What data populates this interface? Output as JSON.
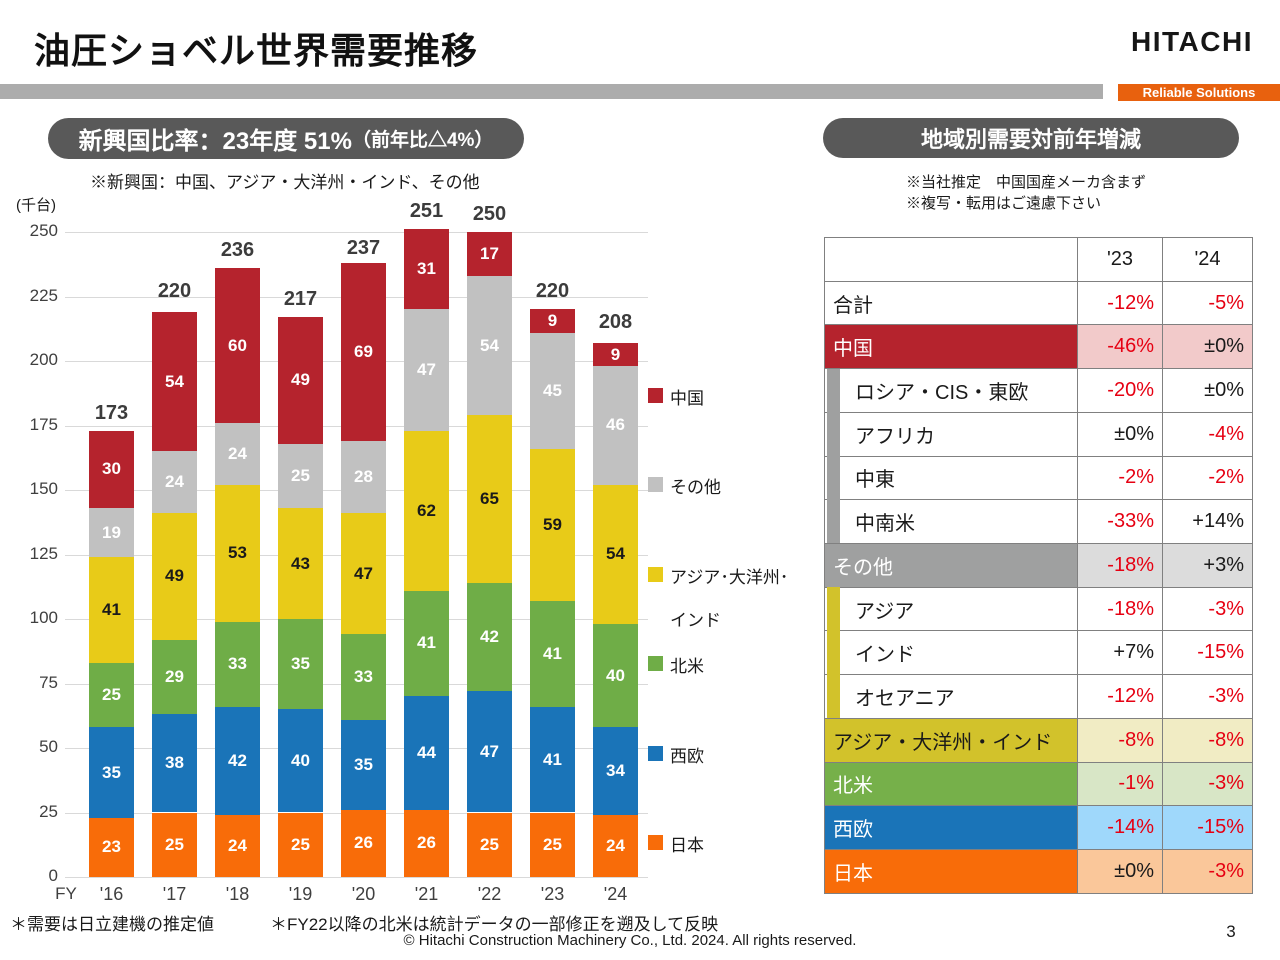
{
  "header": {
    "title": "油圧ショベル世界需要推移",
    "logo": "HITACHI",
    "tagline": "Reliable Solutions"
  },
  "left_panel": {
    "badge_main": "新興国比率：23年度 51%",
    "badge_suffix": "（前年比△4%）",
    "note": "※新興国：中国、アジア・大洋州・インド、その他"
  },
  "right_panel": {
    "badge": "地域別需要対前年増減",
    "notes": [
      "※当社推定　中国国産メーカ含まず",
      "※複写・転用はご遠慮下さい"
    ]
  },
  "chart_data": [
    {
      "type": "bar",
      "stacked": true,
      "title": "油圧ショベル世界需要推移",
      "unit_label": "(千台)",
      "x_axis_label": "FY",
      "categories": [
        "'16",
        "'17",
        "'18",
        "'19",
        "'20",
        "'21",
        "'22",
        "'23",
        "'24"
      ],
      "totals": [
        173,
        220,
        236,
        217,
        237,
        251,
        250,
        220,
        208
      ],
      "series": [
        {
          "name": "日本",
          "color": "#f86c09",
          "label_color": "#ffffff",
          "values": [
            23,
            25,
            24,
            25,
            26,
            26,
            25,
            25,
            24
          ]
        },
        {
          "name": "西欧",
          "color": "#1a74b8",
          "label_color": "#ffffff",
          "values": [
            35,
            38,
            42,
            40,
            35,
            44,
            47,
            41,
            34
          ]
        },
        {
          "name": "北米",
          "color": "#6fad47",
          "label_color": "#ffffff",
          "values": [
            25,
            29,
            33,
            35,
            33,
            41,
            42,
            41,
            40
          ]
        },
        {
          "name": "アジア・大洋州・インド",
          "color": "#e8cb18",
          "label_color": "#1a1a1a",
          "values": [
            41,
            49,
            53,
            43,
            47,
            62,
            65,
            59,
            54
          ]
        },
        {
          "name": "その他",
          "color": "#c1c1c1",
          "label_color": "#ffffff",
          "values": [
            19,
            24,
            24,
            25,
            28,
            47,
            54,
            45,
            46
          ]
        },
        {
          "name": "中国",
          "color": "#b5232d",
          "label_color": "#ffffff",
          "values": [
            30,
            54,
            60,
            49,
            69,
            31,
            17,
            9,
            9
          ]
        }
      ],
      "ylim": [
        0,
        250
      ],
      "ytick_step": 25,
      "grid": true,
      "legend_position": "right",
      "legend": [
        {
          "name": "中国",
          "lines": [
            "中国"
          ]
        },
        {
          "name": "その他",
          "lines": [
            "その他"
          ]
        },
        {
          "name": "アジア・大洋州・インド",
          "lines": [
            "アジア･大洋州･",
            "インド"
          ]
        },
        {
          "name": "北米",
          "lines": [
            "北米"
          ]
        },
        {
          "name": "西欧",
          "lines": [
            "西欧"
          ]
        },
        {
          "name": "日本",
          "lines": [
            "日本"
          ]
        }
      ]
    },
    {
      "type": "table",
      "title": "地域別需要対前年増減",
      "col_headers": [
        "'23",
        "'24"
      ],
      "value_colors": {
        "red": "#e60012",
        "black": "#1a1a1a"
      },
      "row_styles": {
        "plain": {
          "label_bg": "#ffffff",
          "label_fg": "#1a1a1a",
          "cell_bg": "#ffffff",
          "strip": null
        },
        "sub_gray": {
          "label_bg": "#ffffff",
          "label_fg": "#1a1a1a",
          "cell_bg": "#ffffff",
          "strip": "#9fa0a0"
        },
        "sub_yellow": {
          "label_bg": "#ffffff",
          "label_fg": "#1a1a1a",
          "cell_bg": "#ffffff",
          "strip": "#d2c22b"
        },
        "china": {
          "label_bg": "#b5232d",
          "label_fg": "#ffffff",
          "cell_bg": "#f2caca",
          "strip": null
        },
        "others": {
          "label_bg": "#9fa0a0",
          "label_fg": "#ffffff",
          "cell_bg": "#dcdcdc",
          "strip": null
        },
        "asia_group": {
          "label_bg": "#d2c22b",
          "label_fg": "#1a1a1a",
          "cell_bg": "#f1ecc4",
          "strip": null
        },
        "north_america": {
          "label_bg": "#76b04a",
          "label_fg": "#ffffff",
          "cell_bg": "#d8e6c6",
          "strip": null
        },
        "west_europe": {
          "label_bg": "#1a74b8",
          "label_fg": "#ffffff",
          "cell_bg": "#9fd8fb",
          "strip": null
        },
        "japan": {
          "label_bg": "#f86c09",
          "label_fg": "#ffffff",
          "cell_bg": "#fac79a",
          "strip": null
        }
      },
      "rows": [
        {
          "label": "合計",
          "style": "plain",
          "v23": "-12%",
          "c23": "red",
          "v24": "-5%",
          "c24": "red"
        },
        {
          "label": "中国",
          "style": "china",
          "v23": "-46%",
          "c23": "red",
          "v24": "±0%",
          "c24": "black"
        },
        {
          "label": "ロシア・CIS・東欧",
          "style": "sub_gray",
          "v23": "-20%",
          "c23": "red",
          "v24": "±0%",
          "c24": "black"
        },
        {
          "label": "アフリカ",
          "style": "sub_gray",
          "v23": "±0%",
          "c23": "black",
          "v24": "-4%",
          "c24": "red"
        },
        {
          "label": "中東",
          "style": "sub_gray",
          "v23": "-2%",
          "c23": "red",
          "v24": "-2%",
          "c24": "red"
        },
        {
          "label": "中南米",
          "style": "sub_gray",
          "v23": "-33%",
          "c23": "red",
          "v24": "+14%",
          "c24": "black"
        },
        {
          "label": "その他",
          "style": "others",
          "v23": "-18%",
          "c23": "red",
          "v24": "+3%",
          "c24": "black"
        },
        {
          "label": "アジア",
          "style": "sub_yellow",
          "v23": "-18%",
          "c23": "red",
          "v24": "-3%",
          "c24": "red"
        },
        {
          "label": "インド",
          "style": "sub_yellow",
          "v23": "+7%",
          "c23": "black",
          "v24": "-15%",
          "c24": "red"
        },
        {
          "label": "オセアニア",
          "style": "sub_yellow",
          "v23": "-12%",
          "c23": "red",
          "v24": "-3%",
          "c24": "red"
        },
        {
          "label": "アジア・大洋州・インド",
          "style": "asia_group",
          "v23": "-8%",
          "c23": "red",
          "v24": "-8%",
          "c24": "red"
        },
        {
          "label": "北米",
          "style": "north_america",
          "v23": "-1%",
          "c23": "red",
          "v24": "-3%",
          "c24": "red"
        },
        {
          "label": "西欧",
          "style": "west_europe",
          "v23": "-14%",
          "c23": "red",
          "v24": "-15%",
          "c24": "red"
        },
        {
          "label": "日本",
          "style": "japan",
          "v23": "±0%",
          "c23": "black",
          "v24": "-3%",
          "c24": "red"
        }
      ]
    }
  ],
  "footer": {
    "note1": "＊需要は日立建機の推定値",
    "note2": "＊FY22以降の北米は統計データの一部修正を遡及して反映",
    "copyright": "© Hitachi Construction Machinery Co., Ltd. 2024. All rights reserved.",
    "page": "3"
  },
  "colors": {
    "accent_orange": "#e8610e",
    "badge_gray": "#595959",
    "negative_text": "#e60012",
    "gridline": "#d9d9d9"
  }
}
